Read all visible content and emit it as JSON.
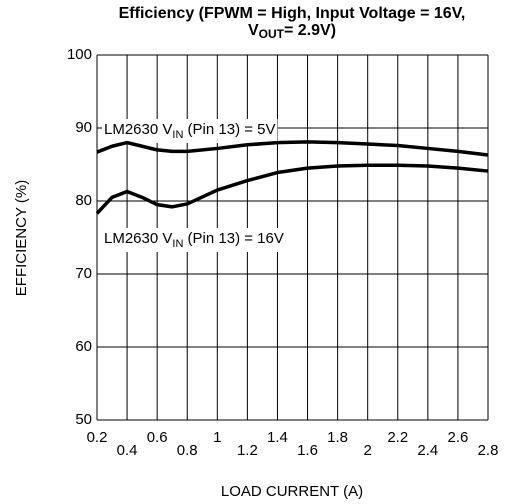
{
  "chart_data": {
    "type": "line",
    "title": [
      "Efficiency (FPWM = High, Input Voltage = 16V,",
      "V",
      "OUT",
      "= 2.9V)"
    ],
    "xlabel": "LOAD CURRENT (A)",
    "ylabel": "EFFICIENCY (%)",
    "x": [
      0.2,
      0.3,
      0.4,
      0.5,
      0.6,
      0.7,
      0.8,
      1.0,
      1.2,
      1.4,
      1.6,
      1.8,
      2.0,
      2.2,
      2.4,
      2.6,
      2.8
    ],
    "series": [
      {
        "name": [
          "LM2630 V",
          "IN",
          " (Pin 13) = 5V"
        ],
        "color": "#000000",
        "values": [
          86.7,
          87.5,
          88.0,
          87.5,
          87.0,
          86.8,
          86.8,
          87.2,
          87.7,
          88.0,
          88.1,
          88.0,
          87.8,
          87.6,
          87.2,
          86.8,
          86.3
        ]
      },
      {
        "name": [
          "LM2630 V",
          "IN",
          " (Pin 13) = 16V"
        ],
        "color": "#000000",
        "values": [
          78.3,
          80.5,
          81.3,
          80.5,
          79.5,
          79.2,
          79.6,
          81.5,
          82.8,
          83.9,
          84.5,
          84.8,
          84.9,
          84.9,
          84.8,
          84.5,
          84.1
        ]
      }
    ],
    "xlim": [
      0.2,
      2.8
    ],
    "xticks": [
      0.2,
      0.4,
      0.6,
      0.8,
      1,
      1.2,
      1.4,
      1.6,
      1.8,
      2,
      2.2,
      2.4,
      2.6,
      2.8
    ],
    "ylim": [
      50,
      100
    ],
    "yticks": [
      50,
      60,
      70,
      80,
      90,
      100
    ],
    "grid": true
  }
}
